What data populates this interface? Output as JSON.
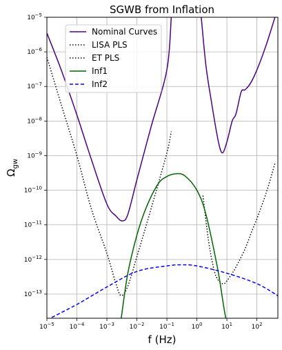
{
  "chart_data": {
    "type": "line",
    "title": "SGWB from Inflation",
    "xlabel": "f (Hz)",
    "ylabel_base": "Ω",
    "ylabel_sub": "gw",
    "xscale": "log",
    "yscale": "log",
    "xlim": [
      1e-05,
      500
    ],
    "ylim": [
      2e-14,
      1e-05
    ],
    "grid": true,
    "legend_position": "top-left",
    "x_ticks": [
      {
        "value": 1e-05,
        "base": "10",
        "exp": "−5"
      },
      {
        "value": 0.0001,
        "base": "10",
        "exp": "−4"
      },
      {
        "value": 0.001,
        "base": "10",
        "exp": "−3"
      },
      {
        "value": 0.01,
        "base": "10",
        "exp": "−2"
      },
      {
        "value": 0.1,
        "base": "10",
        "exp": "−1"
      },
      {
        "value": 1,
        "base": "10",
        "exp": "0"
      },
      {
        "value": 10,
        "base": "10",
        "exp": "1"
      },
      {
        "value": 100,
        "base": "10",
        "exp": "2"
      }
    ],
    "y_ticks": [
      {
        "value": 1e-13,
        "base": "10",
        "exp": "−13"
      },
      {
        "value": 1e-12,
        "base": "10",
        "exp": "−12"
      },
      {
        "value": 1e-11,
        "base": "10",
        "exp": "−11"
      },
      {
        "value": 1e-10,
        "base": "10",
        "exp": "−10"
      },
      {
        "value": 1e-09,
        "base": "10",
        "exp": "−9"
      },
      {
        "value": 1e-08,
        "base": "10",
        "exp": "−8"
      },
      {
        "value": 1e-07,
        "base": "10",
        "exp": "−7"
      },
      {
        "value": 1e-06,
        "base": "10",
        "exp": "−6"
      },
      {
        "value": 1e-05,
        "base": "10",
        "exp": "−5"
      }
    ],
    "series": [
      {
        "name": "Nominal Curves",
        "color": "#4b0082",
        "style": "solid",
        "segments": [
          {
            "x": [
              1e-05,
              3e-05,
              0.0001,
              0.0003,
              0.001,
              0.002,
              0.0033,
              0.005,
              0.01,
              0.03,
              0.1,
              0.14
            ],
            "y": [
              3.5e-06,
              3e-07,
              1.5e-08,
              8e-10,
              4e-11,
              1.8e-11,
              1.3e-11,
              2e-11,
              2e-10,
              7e-09,
              3e-07,
              1e-05
            ]
          },
          {
            "x": [
              1.4,
              2,
              3,
              5,
              7,
              10,
              15,
              20,
              30,
              40,
              60,
              100,
              200,
              400
            ],
            "y": [
              1e-05,
              4e-07,
              4e-08,
              3e-09,
              1.2e-09,
              2.5e-09,
              1e-08,
              1.6e-08,
              7e-08,
              8e-08,
              1.2e-07,
              3e-07,
              1.5e-06,
              1e-05
            ]
          }
        ]
      },
      {
        "name": "LISA PLS",
        "color": "#000000",
        "style": "dotted",
        "segments": [
          {
            "x": [
              1e-05,
              3e-05,
              0.0001,
              0.0003,
              0.001,
              0.002,
              0.003,
              0.005,
              0.01,
              0.03,
              0.1,
              0.14
            ],
            "y": [
              7e-07,
              3e-08,
              1e-09,
              3e-11,
              1.5e-12,
              2e-13,
              9e-14,
              1.7e-13,
              1.2e-12,
              3e-11,
              1.2e-09,
              5e-09
            ]
          }
        ]
      },
      {
        "name": "ET PLS",
        "color": "#000000",
        "style": "dotted",
        "segments": [
          {
            "x": [
              1.6,
              2.5,
              4,
              6,
              8,
              10,
              15,
              20,
              40,
              70,
              100,
              200,
              400
            ],
            "y": [
              7e-11,
              3e-12,
              4e-13,
              2.2e-13,
              2e-13,
              2.4e-13,
              4e-13,
              6e-13,
              2e-12,
              7e-12,
              1.5e-11,
              8e-11,
              6e-10
            ]
          }
        ]
      },
      {
        "name": "Inf1",
        "color": "#006400",
        "style": "solid",
        "segments": [
          {
            "x": [
              0.003,
              0.005,
              0.01,
              0.02,
              0.05,
              0.1,
              0.2,
              0.4,
              1,
              2,
              5,
              10,
              17
            ],
            "y": [
              2e-14,
              4e-13,
              5e-12,
              3e-11,
              1.5e-10,
              2.5e-10,
              3e-10,
              2.6e-10,
              1e-10,
              2e-11,
              5e-13,
              1.5e-14,
              2e-14
            ]
          }
        ]
      },
      {
        "name": "Inf2",
        "color": "#0000ff",
        "style": "dashed",
        "segments": [
          {
            "x": [
              1e-05,
              0.0001,
              0.001,
              0.01,
              0.1,
              0.3,
              1,
              10,
              100,
              500
            ],
            "y": [
              1.8e-14,
              5e-14,
              1.6e-13,
              4.5e-13,
              6.5e-13,
              7e-13,
              6.5e-13,
              4e-13,
              2e-13,
              9e-14
            ]
          }
        ]
      }
    ]
  }
}
